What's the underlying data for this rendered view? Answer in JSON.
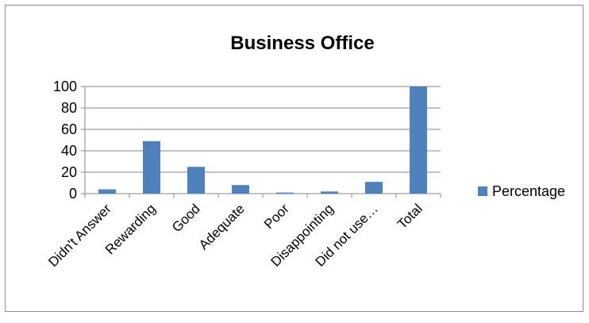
{
  "chart_data": {
    "type": "bar",
    "title": "Business Office",
    "xlabel": "",
    "ylabel": "",
    "categories": [
      "Didn't Answer",
      "Rewarding",
      "Good",
      "Adequate",
      "Poor",
      "Disappointing",
      "Did not use…",
      "Total"
    ],
    "series": [
      {
        "name": "Percentage",
        "values": [
          4,
          49,
          25,
          8,
          1,
          2,
          11,
          100
        ],
        "color": "#4f81bd"
      }
    ],
    "ylim": [
      0,
      100
    ],
    "yticks": [
      "0",
      "20",
      "40",
      "60",
      "80",
      "100"
    ],
    "grid": true,
    "legend": "right"
  }
}
